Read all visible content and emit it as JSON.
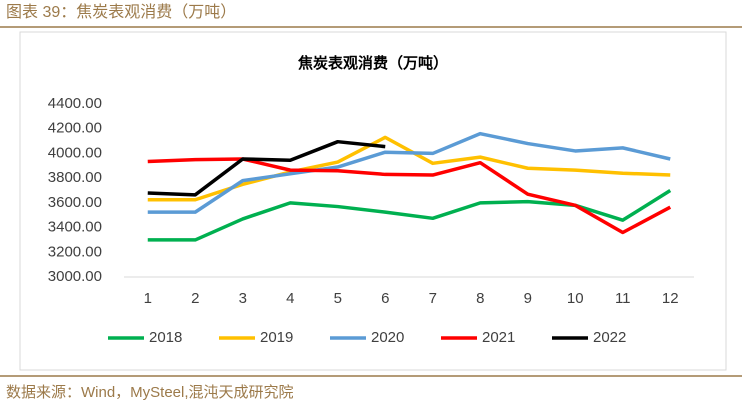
{
  "header": {
    "title": "图表 39：焦炭表观消费（万吨）"
  },
  "source": "数据来源：Wind，MySteel,混沌天成研究院",
  "chart_data": {
    "type": "line",
    "title": "焦炭表观消费（万吨）",
    "categories": [
      "1",
      "2",
      "3",
      "4",
      "5",
      "6",
      "7",
      "8",
      "9",
      "10",
      "11",
      "12"
    ],
    "ylim": [
      3000,
      4400
    ],
    "yticks": [
      {
        "value": 3000,
        "label": "3000.00"
      },
      {
        "value": 3200,
        "label": "3200.00"
      },
      {
        "value": 3400,
        "label": "3400.00"
      },
      {
        "value": 3600,
        "label": "3600.00"
      },
      {
        "value": 3800,
        "label": "3800.00"
      },
      {
        "value": 4000,
        "label": "4000.00"
      },
      {
        "value": 4200,
        "label": "4200.00"
      },
      {
        "value": 4400,
        "label": "4400.00"
      }
    ],
    "grid": false,
    "legend": "bottom",
    "series": [
      {
        "name": "2018",
        "color": "#00b050",
        "values": [
          3300,
          3300,
          3470,
          3600,
          3570,
          3525,
          3475,
          3600,
          3610,
          3580,
          3460,
          3700
        ]
      },
      {
        "name": "2019",
        "color": "#ffc000",
        "values": [
          3625,
          3625,
          3750,
          3850,
          3930,
          4130,
          3920,
          3970,
          3880,
          3865,
          3840,
          3825
        ]
      },
      {
        "name": "2020",
        "color": "#5b9bd5",
        "values": [
          3525,
          3525,
          3780,
          3835,
          3890,
          4010,
          4000,
          4160,
          4080,
          4020,
          4045,
          3955
        ]
      },
      {
        "name": "2021",
        "color": "#ff0000",
        "values": [
          3935,
          3950,
          3955,
          3865,
          3860,
          3830,
          3825,
          3925,
          3670,
          3580,
          3360,
          3565
        ]
      },
      {
        "name": "2022",
        "color": "#000000",
        "values": [
          3680,
          3665,
          3955,
          3945,
          4095,
          4055,
          null,
          null,
          null,
          null,
          null,
          null
        ]
      }
    ]
  }
}
